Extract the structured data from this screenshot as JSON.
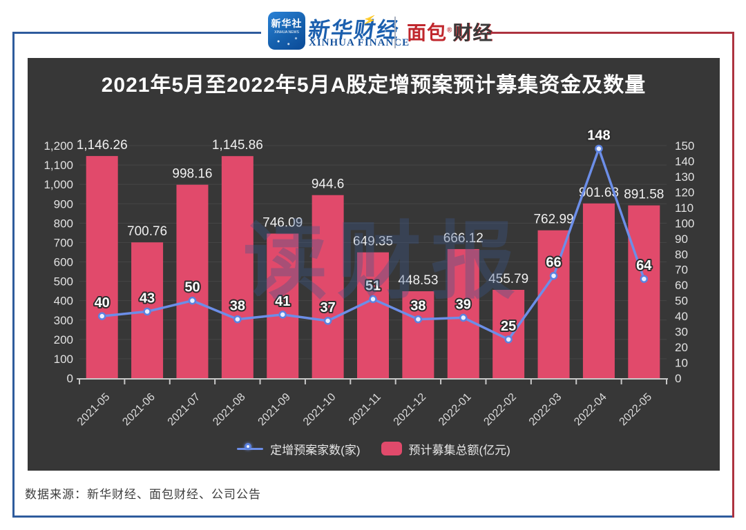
{
  "header": {
    "xinhua_icon_line1": "新华社",
    "xinhua_icon_line2": "XINHUA NEWS",
    "xinhua_cn": "新华财经",
    "xinhua_en": "XINHUA FINANCE",
    "bread_cn_part1": "面包",
    "bread_reg": "®",
    "bread_cn_part2": "财经"
  },
  "chart_panel": {
    "title": "2021年5月至2022年5月A股定增预案预计募集资金及数量",
    "watermark": "读财报"
  },
  "legend": {
    "items": [
      {
        "label": "定增预案家数(家)",
        "type": "line"
      },
      {
        "label": "预计募集总额(亿元)",
        "type": "bar"
      }
    ]
  },
  "footer": {
    "source": "数据来源：新华财经、面包财经、公司公告"
  },
  "colors": {
    "panel_bg": "#373737",
    "bar": "#e14a6b",
    "line": "#6c8ee8",
    "marker_fill": "#e8efff",
    "marker_stroke": "#5b82e0",
    "grid": "rgba(255,255,255,0.08)",
    "axis_line": "#c9c9c9",
    "axis_text": "#e2e2e2",
    "bar_label": "#f0f0f0",
    "line_label_fill": "#ffffff",
    "line_label_stroke": "#2d2d2d",
    "frame_blue": "#2e5b9d",
    "frame_red": "#ad3340",
    "xinhua_blue": "#1b5fae",
    "bread_red": "#c0272d"
  },
  "chart_data": {
    "type": "bar",
    "title": "2021年5月至2022年5月A股定增预案预计募集资金及数量",
    "categories": [
      "2021-05",
      "2021-06",
      "2021-07",
      "2021-08",
      "2021-09",
      "2021-10",
      "2021-11",
      "2021-12",
      "2022-01",
      "2022-02",
      "2022-03",
      "2022-04",
      "2022-05"
    ],
    "series": [
      {
        "name": "预计募集总额(亿元)",
        "type": "bar",
        "axis": "left",
        "values": [
          1146.26,
          700.76,
          998.16,
          1145.86,
          746.09,
          944.6,
          649.35,
          448.53,
          666.12,
          455.79,
          762.99,
          901.63,
          891.58
        ],
        "labels": [
          "1,146.26",
          "700.76",
          "998.16",
          "1,145.86",
          "746.09",
          "944.6",
          "649.35",
          "448.53",
          "666.12",
          "455.79",
          "762.99",
          "901.63",
          "891.58"
        ]
      },
      {
        "name": "定增预案家数(家)",
        "type": "line",
        "axis": "right",
        "values": [
          40,
          43,
          50,
          38,
          41,
          37,
          51,
          38,
          39,
          25,
          66,
          148,
          64
        ],
        "labels": [
          "40",
          "43",
          "50",
          "38",
          "41",
          "37",
          "51",
          "38",
          "39",
          "25",
          "66",
          "148",
          "64"
        ]
      }
    ],
    "left_axis": {
      "min": 0,
      "max": 1200,
      "step": 100,
      "ticks": [
        "0",
        "100",
        "200",
        "300",
        "400",
        "500",
        "600",
        "700",
        "800",
        "900",
        "1,000",
        "1,100",
        "1,200"
      ]
    },
    "right_axis": {
      "min": 0,
      "max": 150,
      "step": 10,
      "ticks": [
        "0",
        "10",
        "20",
        "30",
        "40",
        "50",
        "60",
        "70",
        "80",
        "90",
        "100",
        "110",
        "120",
        "130",
        "140",
        "150"
      ]
    },
    "grid": true,
    "legend_position": "bottom"
  }
}
